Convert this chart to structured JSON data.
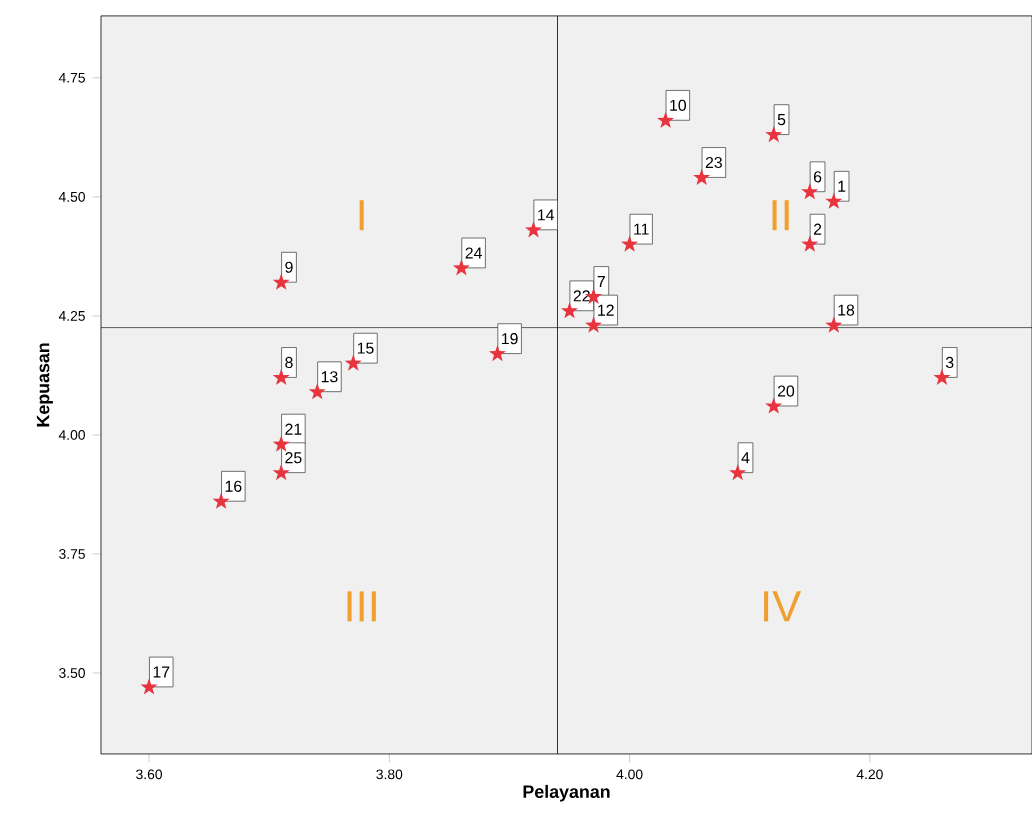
{
  "chart_data": {
    "type": "scatter",
    "xlabel": "Pelayanan",
    "ylabel": "Kepuasan",
    "series": [
      {
        "color": "#e8343f",
        "x": [
          4.17,
          4.15,
          4.26,
          4.09,
          4.12,
          4.15,
          3.97,
          3.71,
          3.71,
          4.03,
          4.0,
          3.97,
          3.74,
          3.92,
          3.77,
          3.66,
          3.6,
          4.17,
          3.89,
          4.12,
          3.71,
          3.95,
          4.06,
          3.86,
          3.71
        ],
        "values": [
          4.49,
          4.4,
          4.12,
          3.92,
          4.63,
          4.51,
          4.29,
          4.12,
          4.32,
          4.66,
          4.4,
          4.23,
          4.09,
          4.43,
          4.15,
          3.86,
          3.47,
          4.23,
          4.17,
          4.06,
          3.98,
          4.26,
          4.54,
          4.35,
          3.92
        ]
      }
    ],
    "marker": "star",
    "xlim": [
      3.56,
      4.335
    ],
    "ylim": [
      3.33,
      4.88
    ],
    "xticks": [
      {
        "value": 3.6,
        "label": "3.60"
      },
      {
        "value": 3.8,
        "label": "3.80"
      },
      {
        "value": 4.0,
        "label": "4.00"
      },
      {
        "value": 4.2,
        "label": "4.20"
      }
    ],
    "yticks": [
      {
        "value": 3.5,
        "label": "3.50"
      },
      {
        "value": 3.75,
        "label": "3.75"
      },
      {
        "value": 4.0,
        "label": "4.00"
      },
      {
        "value": 4.25,
        "label": "4.25"
      },
      {
        "value": 4.5,
        "label": "4.50"
      },
      {
        "value": 4.75,
        "label": "4.75"
      }
    ],
    "ref_lines": [
      {
        "axis": "x",
        "value": 3.94,
        "color": "#000000"
      },
      {
        "axis": "y",
        "value": 4.225,
        "color": "#000000"
      }
    ],
    "annotations": [
      "I",
      "II",
      "III",
      "IV",
      {
        "text": "1",
        "x": 4.17,
        "y": 4.49
      },
      {
        "text": "2",
        "x": 4.15,
        "y": 4.4
      },
      {
        "text": "3",
        "x": 4.26,
        "y": 4.12
      },
      {
        "text": "4",
        "x": 4.09,
        "y": 3.92
      },
      {
        "text": "5",
        "x": 4.12,
        "y": 4.63
      },
      {
        "text": "6",
        "x": 4.15,
        "y": 4.51
      },
      {
        "text": "7",
        "x": 3.97,
        "y": 4.29
      },
      {
        "text": "8",
        "x": 3.71,
        "y": 4.12
      },
      {
        "text": "9",
        "x": 3.71,
        "y": 4.32
      },
      {
        "text": "10",
        "x": 4.03,
        "y": 4.66
      },
      {
        "text": "11",
        "x": 4.0,
        "y": 4.4
      },
      {
        "text": "12",
        "x": 3.97,
        "y": 4.23
      },
      {
        "text": "13",
        "x": 3.74,
        "y": 4.09
      },
      {
        "text": "14",
        "x": 3.92,
        "y": 4.43
      },
      {
        "text": "15",
        "x": 3.77,
        "y": 4.15
      },
      {
        "text": "16",
        "x": 3.66,
        "y": 3.86
      },
      {
        "text": "17",
        "x": 3.6,
        "y": 3.47
      },
      {
        "text": "18",
        "x": 4.17,
        "y": 4.23
      },
      {
        "text": "19",
        "x": 3.89,
        "y": 4.17
      },
      {
        "text": "20",
        "x": 4.12,
        "y": 4.06
      },
      {
        "text": "21",
        "x": 3.71,
        "y": 3.98
      },
      {
        "text": "22",
        "x": 3.95,
        "y": 4.26
      },
      {
        "text": "23",
        "x": 4.06,
        "y": 4.54
      },
      {
        "text": "24",
        "x": 3.86,
        "y": 4.35
      },
      {
        "text": "25",
        "x": 3.71,
        "y": 3.92
      }
    ]
  }
}
